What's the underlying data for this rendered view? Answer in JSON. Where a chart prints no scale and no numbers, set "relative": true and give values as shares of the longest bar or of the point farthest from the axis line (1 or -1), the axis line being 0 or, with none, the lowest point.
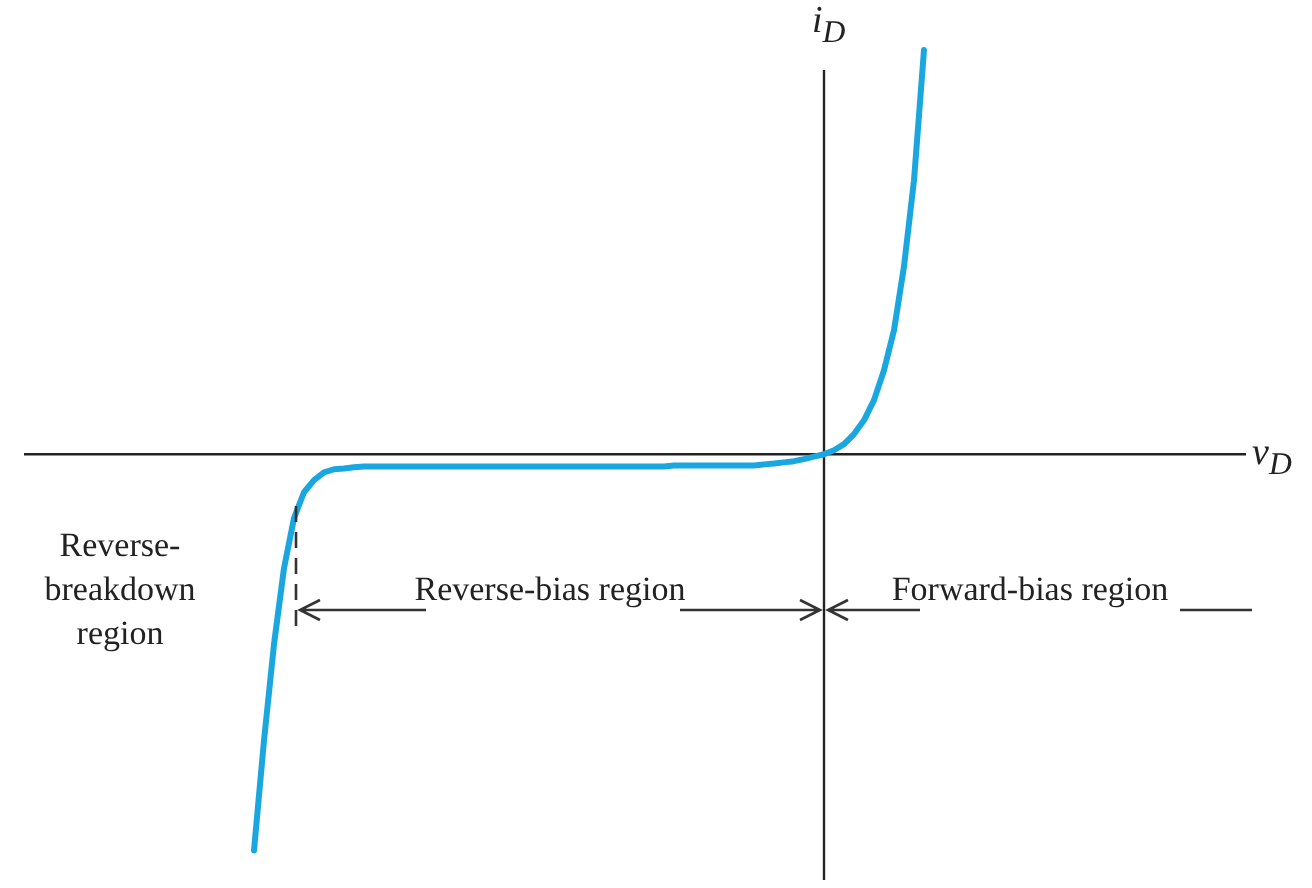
{
  "chart_data": {
    "type": "line",
    "relative": true,
    "ylabel": "i$_{D}$",
    "legend": false,
    "marker": "none",
    "line_style": "solid",
    "annotations": [
      "Reverse-breakdown region",
      "Reverse-bias region",
      "Forward-bias region",
      "v$_{D}$"
    ],
    "categories": [
      null,
      null,
      null,
      null,
      null,
      null,
      null,
      null,
      null,
      null,
      null,
      null,
      null,
      null,
      null,
      null,
      null,
      null,
      null,
      null,
      null,
      null,
      null,
      null,
      null,
      null,
      null,
      null,
      null,
      null,
      null,
      null,
      null,
      null,
      null,
      null,
      null,
      null,
      null,
      null,
      null,
      null,
      null,
      null,
      null,
      null,
      null,
      null,
      null,
      null,
      null,
      null,
      null,
      null,
      null,
      null,
      null,
      null,
      null,
      null,
      null,
      null,
      null,
      null,
      null,
      null,
      null,
      null
    ],
    "series": [
      {
        "color": "#1aa7e0",
        "values": [
          -0.98,
          -0.708,
          -0.47,
          -0.282,
          -0.158,
          -0.094,
          -0.064,
          -0.045,
          -0.037,
          -0.035,
          -0.032,
          -0.03,
          -0.03,
          -0.03,
          -0.03,
          -0.03,
          -0.03,
          -0.03,
          -0.03,
          -0.03,
          -0.03,
          -0.03,
          -0.03,
          -0.03,
          -0.03,
          -0.03,
          -0.03,
          -0.03,
          -0.03,
          -0.03,
          -0.03,
          -0.03,
          -0.03,
          -0.03,
          -0.03,
          -0.03,
          -0.03,
          -0.03,
          -0.03,
          -0.03,
          -0.03,
          -0.03,
          -0.028,
          -0.028,
          -0.028,
          -0.028,
          -0.028,
          -0.028,
          -0.028,
          -0.028,
          -0.028,
          -0.025,
          -0.023,
          -0.02,
          -0.017,
          -0.012,
          -0.006,
          0,
          0.01,
          0.025,
          0.05,
          0.084,
          0.134,
          0.208,
          0.307,
          0.465,
          0.678,
          1.0
        ]
      }
    ]
  }
}
